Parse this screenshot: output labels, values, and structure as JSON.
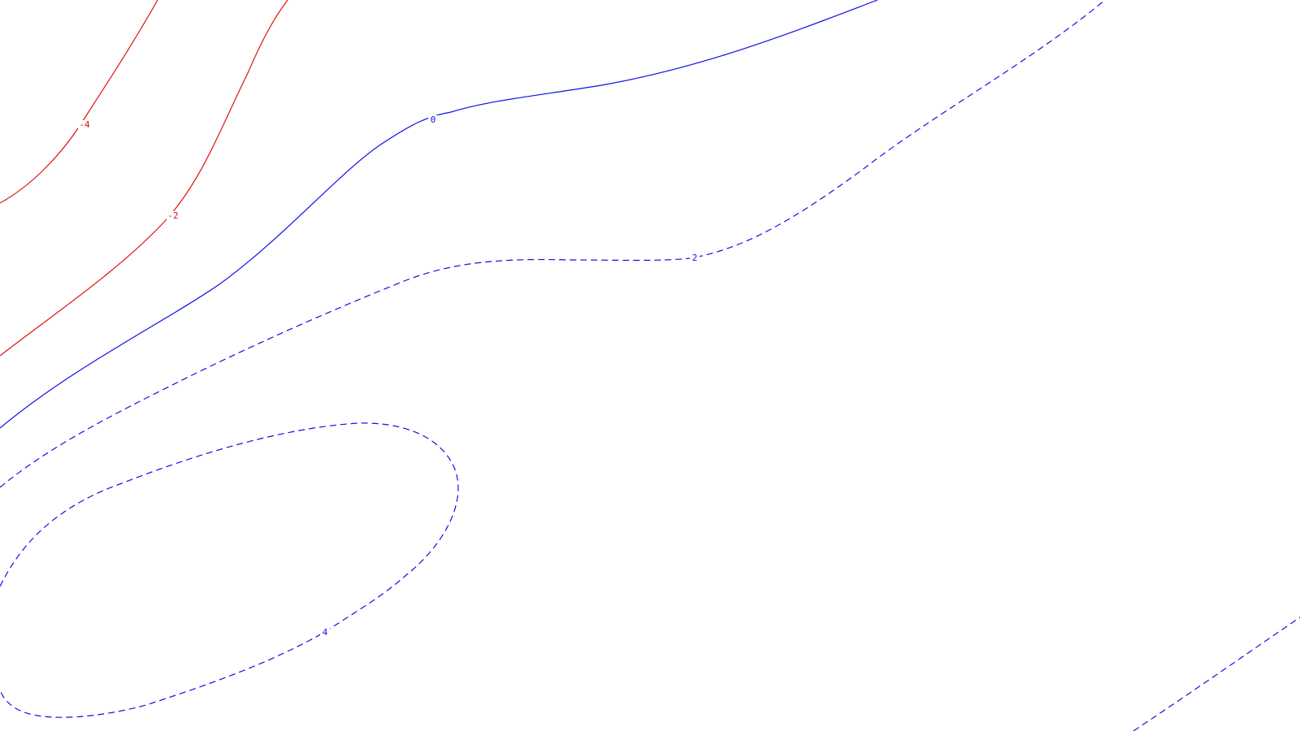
{
  "chart_data": {
    "type": "contour",
    "title": "",
    "xlabel": "",
    "ylabel": "",
    "grid": false,
    "legend": "none",
    "style": {
      "positive_color": "#1010e8",
      "negative_color": "#e01010",
      "positive_dash": "dashed",
      "negative_dash": "solid"
    },
    "levels": [
      {
        "id": "neg4",
        "value": -4,
        "label": "-4"
      },
      {
        "id": "neg2",
        "value": -2,
        "label": "-2"
      },
      {
        "id": "zero",
        "value": 0,
        "label": "0"
      },
      {
        "id": "pos2",
        "value": 2,
        "label": "2"
      },
      {
        "id": "pos4",
        "value": 4,
        "label": "4"
      }
    ]
  }
}
